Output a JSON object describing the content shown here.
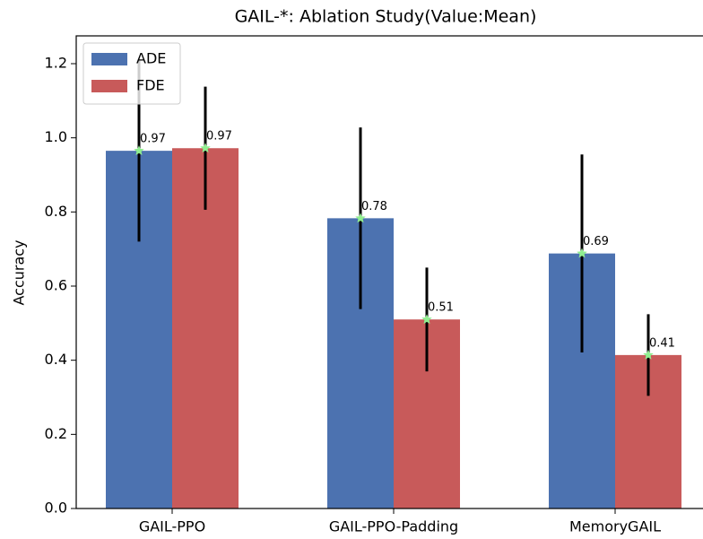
{
  "chart_data": {
    "type": "bar",
    "title": "GAIL-*: Ablation Study(Value:Mean)",
    "y_label": "Accuracy",
    "categories": [
      "GAIL-PPO",
      "GAIL-PPO-Padding",
      "MemoryGAIL"
    ],
    "series": [
      {
        "name": "ADE",
        "color": "#4c72b0",
        "values": [
          0.965,
          0.783,
          0.688
        ],
        "value_labels": [
          "0.97",
          "0.78",
          "0.69"
        ],
        "errors": [
          0.245,
          0.245,
          0.267
        ]
      },
      {
        "name": "FDE",
        "color": "#c85a5a",
        "values": [
          0.972,
          0.51,
          0.414
        ],
        "value_labels": [
          "0.97",
          "0.51",
          "0.41"
        ],
        "errors": [
          0.166,
          0.14,
          0.11
        ]
      }
    ],
    "marker_color": "#90ee90",
    "ylim": [
      0,
      1.275
    ],
    "yticks": [
      {
        "value": 0,
        "label": "0.0"
      },
      0.2,
      0.4,
      0.6,
      0.8,
      {
        "value": 1,
        "label": "1.0"
      },
      1.2
    ],
    "legend": "upper left"
  }
}
